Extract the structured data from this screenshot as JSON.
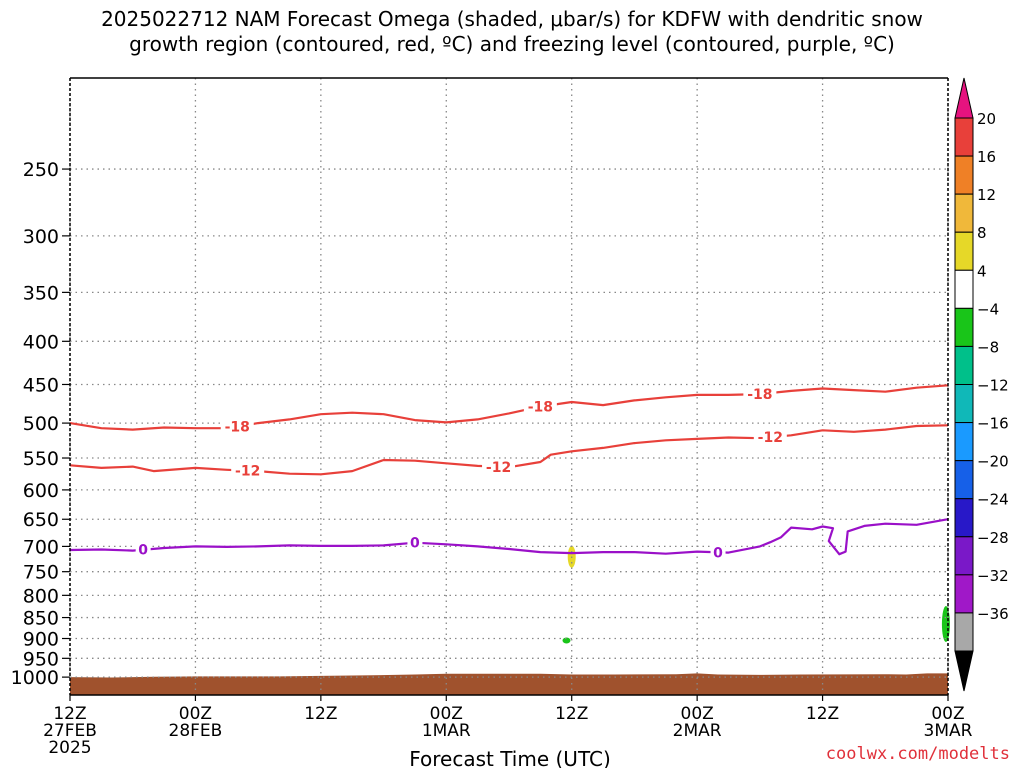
{
  "title_line1": "2025022712 NAM Forecast Omega (shaded, μbar/s) for KDFW with dendritic snow",
  "title_line2": "growth region (contoured, red, ºC) and freezing level (contoured, purple, ºC)",
  "credit": "coolwx.com/modelts",
  "colors": {
    "snow_contour": "#e8403a",
    "freezing_contour": "#9a10c8",
    "terrain": "#a0522d",
    "grid": "#888888"
  },
  "chart_data": {
    "type": "line",
    "title": "2025022712 NAM Forecast Omega (shaded, μbar/s) for KDFW with dendritic snow growth region (contoured, red, ºC) and freezing level (contoured, purple, ºC)",
    "xlabel": "Forecast Time (UTC)",
    "ylabel": "",
    "xlim": [
      0,
      84
    ],
    "x_units": "forecast hours from 2025-02-27 12Z",
    "x_ticks": [
      {
        "x": 0,
        "label1": "12Z",
        "label2": "27FEB",
        "label3": "2025"
      },
      {
        "x": 12,
        "label1": "00Z",
        "label2": "28FEB",
        "label3": ""
      },
      {
        "x": 24,
        "label1": "12Z",
        "label2": "",
        "label3": ""
      },
      {
        "x": 36,
        "label1": "00Z",
        "label2": "1MAR",
        "label3": ""
      },
      {
        "x": 48,
        "label1": "12Z",
        "label2": "",
        "label3": ""
      },
      {
        "x": 60,
        "label1": "00Z",
        "label2": "2MAR",
        "label3": ""
      },
      {
        "x": 72,
        "label1": "12Z",
        "label2": "",
        "label3": ""
      },
      {
        "x": 84,
        "label1": "00Z",
        "label2": "3MAR",
        "label3": ""
      }
    ],
    "y_ticks": [
      250,
      300,
      350,
      400,
      450,
      500,
      550,
      600,
      650,
      700,
      750,
      800,
      850,
      900,
      950,
      1000
    ],
    "ylim_pressure": [
      1050,
      195
    ],
    "yscale": "log",
    "grid": true,
    "series": [
      {
        "name": "-18",
        "color": "#e8403a",
        "label_at": [
          16,
          45,
          66
        ],
        "points": [
          [
            0,
            500
          ],
          [
            3,
            507
          ],
          [
            6,
            509
          ],
          [
            9,
            506
          ],
          [
            12,
            507
          ],
          [
            15,
            507
          ],
          [
            18,
            500
          ],
          [
            21,
            495
          ],
          [
            24,
            488
          ],
          [
            27,
            486
          ],
          [
            30,
            488
          ],
          [
            33,
            496
          ],
          [
            36,
            499
          ],
          [
            39,
            495
          ],
          [
            42,
            487
          ],
          [
            45,
            478
          ],
          [
            48,
            472
          ],
          [
            51,
            476
          ],
          [
            54,
            470
          ],
          [
            57,
            466
          ],
          [
            60,
            463
          ],
          [
            63,
            463
          ],
          [
            66,
            462
          ],
          [
            69,
            458
          ],
          [
            72,
            455
          ],
          [
            75,
            457
          ],
          [
            78,
            459
          ],
          [
            81,
            454
          ],
          [
            84,
            451
          ]
        ]
      },
      {
        "name": "-12",
        "color": "#e8403a",
        "label_at": [
          17,
          41,
          67
        ],
        "points": [
          [
            0,
            561
          ],
          [
            3,
            565
          ],
          [
            6,
            563
          ],
          [
            8,
            570
          ],
          [
            12,
            565
          ],
          [
            15,
            568
          ],
          [
            18,
            570
          ],
          [
            21,
            574
          ],
          [
            24,
            575
          ],
          [
            27,
            570
          ],
          [
            30,
            553
          ],
          [
            33,
            554
          ],
          [
            36,
            558
          ],
          [
            39,
            562
          ],
          [
            42,
            564
          ],
          [
            45,
            556
          ],
          [
            46,
            545
          ],
          [
            48,
            540
          ],
          [
            51,
            535
          ],
          [
            54,
            528
          ],
          [
            57,
            524
          ],
          [
            60,
            522
          ],
          [
            63,
            520
          ],
          [
            66,
            521
          ],
          [
            69,
            517
          ],
          [
            72,
            510
          ],
          [
            75,
            512
          ],
          [
            78,
            509
          ],
          [
            81,
            504
          ],
          [
            84,
            503
          ]
        ]
      },
      {
        "name": "0",
        "color": "#9a10c8",
        "label_at": [
          7,
          33,
          62
        ],
        "points": [
          [
            0,
            707
          ],
          [
            3,
            706
          ],
          [
            6,
            708
          ],
          [
            9,
            703
          ],
          [
            12,
            700
          ],
          [
            15,
            701
          ],
          [
            18,
            700
          ],
          [
            21,
            698
          ],
          [
            24,
            699
          ],
          [
            27,
            699
          ],
          [
            30,
            698
          ],
          [
            33,
            693
          ],
          [
            36,
            696
          ],
          [
            39,
            700
          ],
          [
            42,
            705
          ],
          [
            45,
            711
          ],
          [
            48,
            713
          ],
          [
            51,
            711
          ],
          [
            54,
            711
          ],
          [
            57,
            714
          ],
          [
            60,
            710
          ],
          [
            63,
            712
          ],
          [
            66,
            700
          ],
          [
            67,
            692
          ],
          [
            68,
            683
          ],
          [
            69,
            665
          ],
          [
            71,
            668
          ],
          [
            72,
            663
          ],
          [
            73,
            666
          ],
          [
            72.6,
            690
          ],
          [
            73.6,
            715
          ],
          [
            74.2,
            710
          ],
          [
            74.4,
            672
          ],
          [
            76,
            662
          ],
          [
            78,
            658
          ],
          [
            81,
            660
          ],
          [
            84,
            650
          ]
        ]
      }
    ],
    "omega_shading": [
      {
        "x": 48,
        "pressure": 720,
        "value": 6,
        "color": "#e6d828"
      },
      {
        "x": 47.5,
        "pressure": 905,
        "value": -6,
        "color": "#19c519"
      },
      {
        "x": 83.8,
        "pressure": 865,
        "value": -6,
        "color": "#19c519"
      }
    ],
    "terrain": {
      "color": "#a0522d",
      "top_pressure": [
        [
          0,
          1000
        ],
        [
          4,
          1001
        ],
        [
          8,
          999
        ],
        [
          12,
          998
        ],
        [
          20,
          998
        ],
        [
          25,
          996
        ],
        [
          29,
          995
        ],
        [
          33,
          993
        ],
        [
          36,
          991
        ],
        [
          45,
          991
        ],
        [
          48,
          993
        ],
        [
          52,
          993
        ],
        [
          58,
          992
        ],
        [
          60,
          990
        ],
        [
          62,
          993
        ],
        [
          66,
          994
        ],
        [
          70,
          993
        ],
        [
          78,
          992
        ],
        [
          80,
          993
        ],
        [
          82,
          990
        ],
        [
          84,
          990
        ]
      ]
    },
    "colorbar": {
      "ticks": [
        20,
        16,
        12,
        8,
        4,
        -4,
        -8,
        -12,
        -16,
        -20,
        -24,
        -28,
        -32,
        -36
      ],
      "colors": [
        "#e6137f",
        "#e8403a",
        "#ef8026",
        "#f0b83a",
        "#e6d828",
        "#ffffff",
        "#19c519",
        "#00c08a",
        "#10b8b8",
        "#1a9aff",
        "#1660e8",
        "#2818c8",
        "#7a18c8",
        "#a018c8",
        "#a8a8a8",
        "#000000"
      ]
    }
  }
}
